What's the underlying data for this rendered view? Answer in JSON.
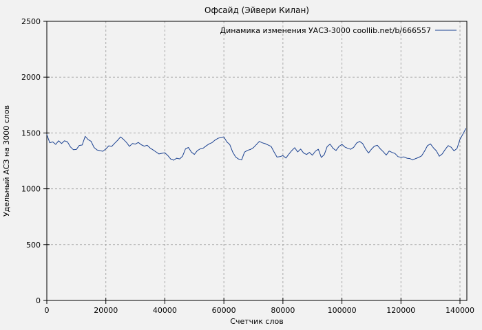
{
  "page": {
    "background": "#f2f2f2"
  },
  "chart": {
    "title": "Офсайд (Эйвери Килан)",
    "legend": {
      "label": "Динамика изменения УАСЗ-3000 coollib.net/b/666557"
    },
    "x_axis": {
      "label": "Счетчик слов",
      "ticks": [
        0,
        20000,
        40000,
        60000,
        80000,
        100000,
        120000,
        140000
      ]
    },
    "y_axis": {
      "label": "Удельный АСЗ на 3000 слов",
      "ticks": [
        0,
        500,
        1000,
        1500,
        2000,
        2500
      ]
    },
    "colors": {
      "series": "#1a4191",
      "grid": "#a9a9a9",
      "border": "#000000",
      "background": "#f2f2f2",
      "text": "#000000"
    }
  },
  "chart_data": {
    "type": "line",
    "title": "Офсайд (ЭйвериИлан) — see chart.title for exact",
    "xlabel": "Счетчик слов",
    "ylabel": "Удельный АСЗ на 3000 слов",
    "xlim": [
      0,
      142330
    ],
    "ylim": [
      0,
      2500
    ],
    "grid": true,
    "legend_position": "top-right",
    "series": [
      {
        "name": "Динамика изменения УАСЗ-3000 coollib.net/b/666557",
        "x": [
          0,
          1000,
          2000,
          3000,
          4000,
          5000,
          6000,
          7000,
          8000,
          9000,
          10000,
          11000,
          12000,
          13000,
          14000,
          15000,
          16000,
          17000,
          18000,
          19000,
          20000,
          21000,
          22000,
          23000,
          24000,
          25000,
          26000,
          27000,
          28000,
          29000,
          30000,
          31000,
          32000,
          33000,
          34000,
          35000,
          36000,
          37000,
          38000,
          39000,
          40000,
          41000,
          42000,
          43000,
          44000,
          45000,
          46000,
          47000,
          48000,
          49000,
          50000,
          51000,
          52000,
          53000,
          54000,
          55000,
          56000,
          57000,
          58000,
          59000,
          60000,
          61000,
          62000,
          63000,
          64000,
          65000,
          66000,
          67000,
          68000,
          69000,
          70000,
          71000,
          72000,
          73000,
          74000,
          75000,
          76000,
          77000,
          78000,
          79000,
          80000,
          81000,
          82000,
          83000,
          84000,
          85000,
          86000,
          87000,
          88000,
          89000,
          90000,
          91000,
          92000,
          93000,
          94000,
          95000,
          96000,
          97000,
          98000,
          99000,
          100000,
          101000,
          102000,
          103000,
          104000,
          105000,
          106000,
          107000,
          108000,
          109000,
          110000,
          111000,
          112000,
          113000,
          114000,
          115000,
          116000,
          117000,
          118000,
          119000,
          120000,
          121000,
          122000,
          123000,
          124000,
          125000,
          126000,
          127000,
          128000,
          129000,
          130000,
          131000,
          132000,
          133000,
          134000,
          135000,
          136000,
          137000,
          138000,
          139000,
          140000,
          141000,
          142000
        ],
        "values": [
          1486,
          1412,
          1420,
          1398,
          1430,
          1405,
          1430,
          1420,
          1375,
          1350,
          1352,
          1388,
          1392,
          1470,
          1440,
          1425,
          1370,
          1348,
          1342,
          1336,
          1357,
          1385,
          1380,
          1408,
          1435,
          1465,
          1442,
          1415,
          1380,
          1405,
          1400,
          1415,
          1395,
          1382,
          1390,
          1365,
          1348,
          1330,
          1312,
          1318,
          1322,
          1298,
          1266,
          1256,
          1274,
          1268,
          1292,
          1358,
          1370,
          1328,
          1308,
          1342,
          1358,
          1364,
          1384,
          1402,
          1414,
          1436,
          1452,
          1460,
          1465,
          1420,
          1396,
          1328,
          1284,
          1266,
          1258,
          1328,
          1344,
          1352,
          1368,
          1396,
          1424,
          1412,
          1404,
          1392,
          1380,
          1330,
          1284,
          1288,
          1297,
          1275,
          1310,
          1342,
          1368,
          1330,
          1356,
          1320,
          1307,
          1326,
          1301,
          1336,
          1354,
          1281,
          1306,
          1379,
          1400,
          1362,
          1343,
          1380,
          1398,
          1374,
          1362,
          1354,
          1372,
          1410,
          1424,
          1405,
          1358,
          1320,
          1354,
          1382,
          1390,
          1358,
          1332,
          1302,
          1338,
          1326,
          1316,
          1288,
          1282,
          1286,
          1274,
          1271,
          1258,
          1271,
          1281,
          1295,
          1338,
          1387,
          1402,
          1367,
          1340,
          1292,
          1312,
          1353,
          1387,
          1372,
          1340,
          1361,
          1443,
          1490,
          1540
        ]
      }
    ]
  }
}
